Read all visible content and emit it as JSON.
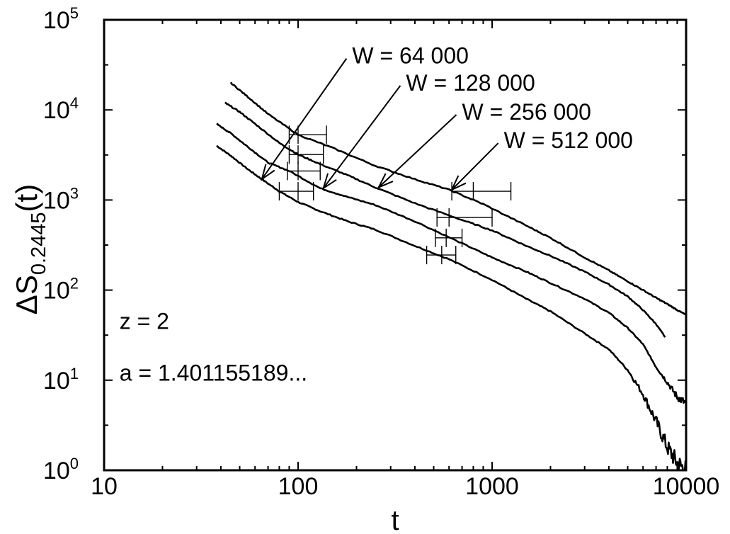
{
  "chart_data": {
    "type": "line",
    "title": "",
    "xlabel": "t",
    "ylabel": {
      "base": "ΔS",
      "subscript": "0.2445",
      "suffix": "(t)"
    },
    "xscale": "log",
    "yscale": "log",
    "xlim": [
      10,
      10000
    ],
    "ylim": [
      1,
      100000
    ],
    "grid": false,
    "x_ticks": [
      {
        "value": 10,
        "label": "10"
      },
      {
        "value": 100,
        "label": "100"
      },
      {
        "value": 1000,
        "label": "1000"
      },
      {
        "value": 10000,
        "label": "10000"
      }
    ],
    "y_ticks": [
      {
        "value": 1,
        "base": "10",
        "exp": "0"
      },
      {
        "value": 10,
        "base": "10",
        "exp": "1"
      },
      {
        "value": 100,
        "base": "10",
        "exp": "2"
      },
      {
        "value": 1000,
        "base": "10",
        "exp": "3"
      },
      {
        "value": 10000,
        "base": "10",
        "exp": "4"
      },
      {
        "value": 100000,
        "base": "10",
        "exp": "5"
      }
    ],
    "series": [
      {
        "name": "W =  64 000",
        "x": [
          38,
          45,
          55,
          65,
          80,
          100,
          130,
          180,
          250,
          400,
          600,
          1000,
          1500,
          2000,
          3000,
          4000,
          5000,
          6000,
          7000,
          8000,
          9000,
          10000
        ],
        "y": [
          4000,
          3100,
          2200,
          1700,
          1250,
          950,
          750,
          580,
          470,
          310,
          220,
          130,
          80,
          58,
          33,
          22,
          13,
          7,
          3.5,
          1.8,
          1.2,
          1.0
        ]
      },
      {
        "name": "W = 128 000",
        "x": [
          38,
          45,
          55,
          70,
          90,
          130,
          180,
          250,
          400,
          700,
          1000,
          1500,
          2000,
          3000,
          4000,
          5000,
          6000,
          7000,
          8000,
          9000,
          10000
        ],
        "y": [
          7000,
          5500,
          3900,
          2600,
          2100,
          1350,
          1080,
          880,
          580,
          330,
          230,
          160,
          120,
          80,
          56,
          38,
          25,
          14,
          9.5,
          6.5,
          5.5
        ]
      },
      {
        "name": "W = 256 000",
        "x": [
          42,
          50,
          60,
          80,
          100,
          130,
          180,
          250,
          400,
          700,
          1000,
          1500,
          2000,
          3000,
          4000,
          5000,
          6000,
          7000,
          7800
        ],
        "y": [
          12000,
          9500,
          7000,
          4300,
          3200,
          2500,
          1880,
          1380,
          920,
          600,
          460,
          310,
          240,
          160,
          115,
          85,
          60,
          42,
          30
        ]
      },
      {
        "name": "W = 512 000",
        "x": [
          45,
          55,
          70,
          100,
          150,
          250,
          400,
          600,
          900,
          1500,
          2000,
          3000,
          4000,
          5000,
          6000,
          7000,
          8000,
          9000,
          10000
        ],
        "y": [
          20000,
          14000,
          9000,
          5300,
          3800,
          2400,
          1700,
          1300,
          900,
          520,
          380,
          230,
          165,
          125,
          100,
          82,
          70,
          60,
          53
        ]
      }
    ],
    "error_bars": [
      {
        "x": 100,
        "y": 1250,
        "xerr": [
          80,
          120
        ]
      },
      {
        "x": 100,
        "y": 2100,
        "xerr": [
          88,
          130
        ]
      },
      {
        "x": 100,
        "y": 3200,
        "xerr": [
          90,
          135
        ]
      },
      {
        "x": 100,
        "y": 5300,
        "xerr": [
          90,
          140
        ]
      },
      {
        "x": 550,
        "y": 245,
        "xerr": [
          460,
          650
        ]
      },
      {
        "x": 580,
        "y": 380,
        "xerr": [
          510,
          700
        ]
      },
      {
        "x": 600,
        "y": 640,
        "xerr": [
          520,
          1000
        ]
      },
      {
        "x": 800,
        "y": 1250,
        "xerr": [
          620,
          1250
        ]
      }
    ],
    "annotations": [
      {
        "text": "W =  64 000",
        "label_x": 190,
        "label_y": 40000,
        "arrow_to_x": 65,
        "arrow_to_y": 1700
      },
      {
        "text": "W = 128 000",
        "label_x": 360,
        "label_y": 20000,
        "arrow_to_x": 135,
        "arrow_to_y": 1350
      },
      {
        "text": "W = 256 000",
        "label_x": 700,
        "label_y": 9500,
        "arrow_to_x": 260,
        "arrow_to_y": 1380
      },
      {
        "text": "W = 512 000",
        "label_x": 1150,
        "label_y": 4600,
        "arrow_to_x": 620,
        "arrow_to_y": 1300
      },
      {
        "text": "z = 2",
        "x": 12,
        "y": 45
      },
      {
        "text": "a = 1.401155189...",
        "x": 12,
        "y": 12
      }
    ]
  }
}
